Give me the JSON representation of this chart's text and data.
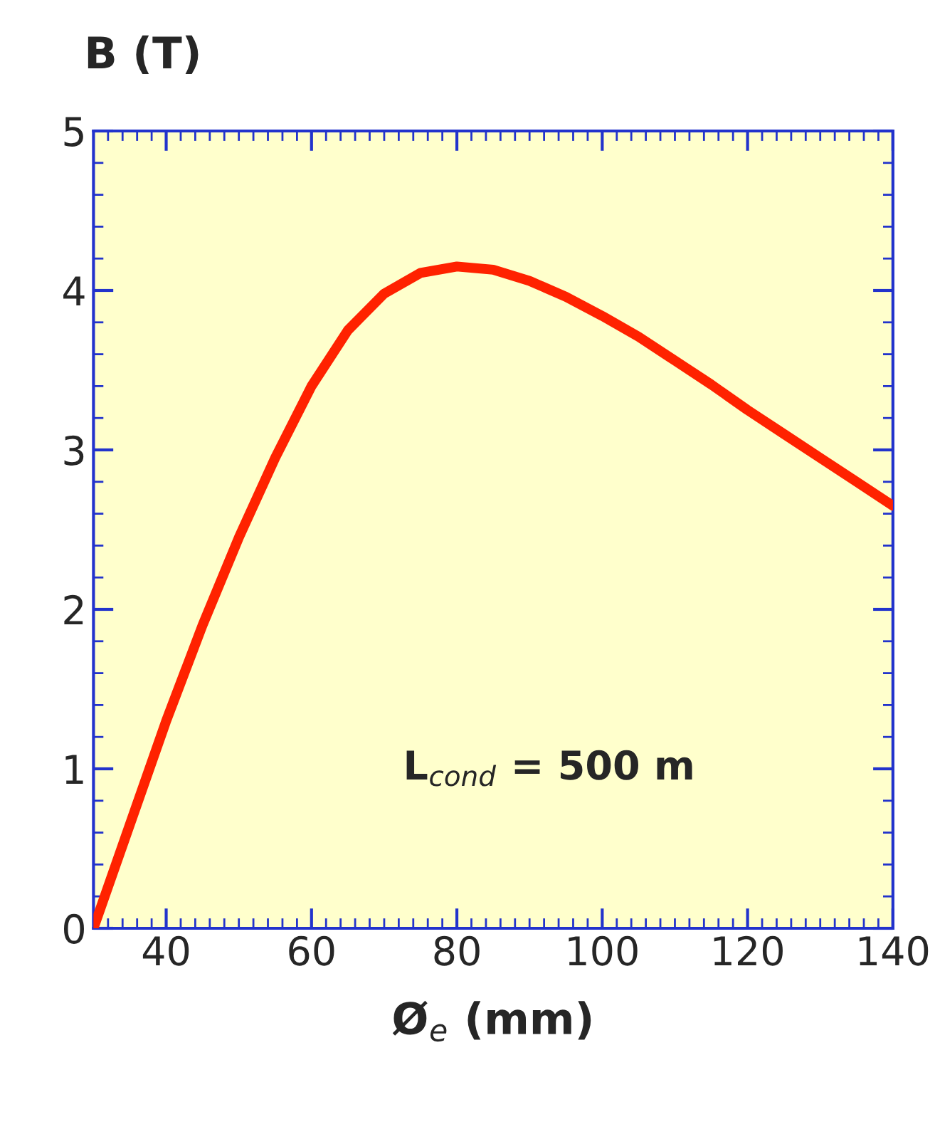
{
  "chart_data": {
    "type": "line",
    "ylabel": "B (T)",
    "xlabel": "Ø$_{e}$ (mm)",
    "annotations": [
      "L$_{cond}$ = 500 m"
    ],
    "x": [
      30,
      35,
      40,
      45,
      50,
      55,
      60,
      65,
      70,
      75,
      80,
      85,
      90,
      95,
      100,
      105,
      110,
      115,
      120,
      125,
      130,
      135,
      140
    ],
    "series": [
      {
        "color": "#ff2200",
        "values": [
          0,
          0.65,
          1.3,
          1.9,
          2.45,
          2.95,
          3.4,
          3.75,
          3.98,
          4.11,
          4.15,
          4.13,
          4.06,
          3.96,
          3.84,
          3.71,
          3.56,
          3.41,
          3.25,
          3.1,
          2.95,
          2.8,
          2.65
        ]
      }
    ],
    "xlim": [
      30,
      140
    ],
    "xticks": [
      40,
      60,
      80,
      100,
      120,
      140
    ],
    "ylim": [
      0,
      5
    ],
    "yticks": [
      0,
      1,
      2,
      3,
      4,
      5
    ],
    "grid": false,
    "legend": false,
    "marker": "none",
    "line_style": "solid"
  }
}
